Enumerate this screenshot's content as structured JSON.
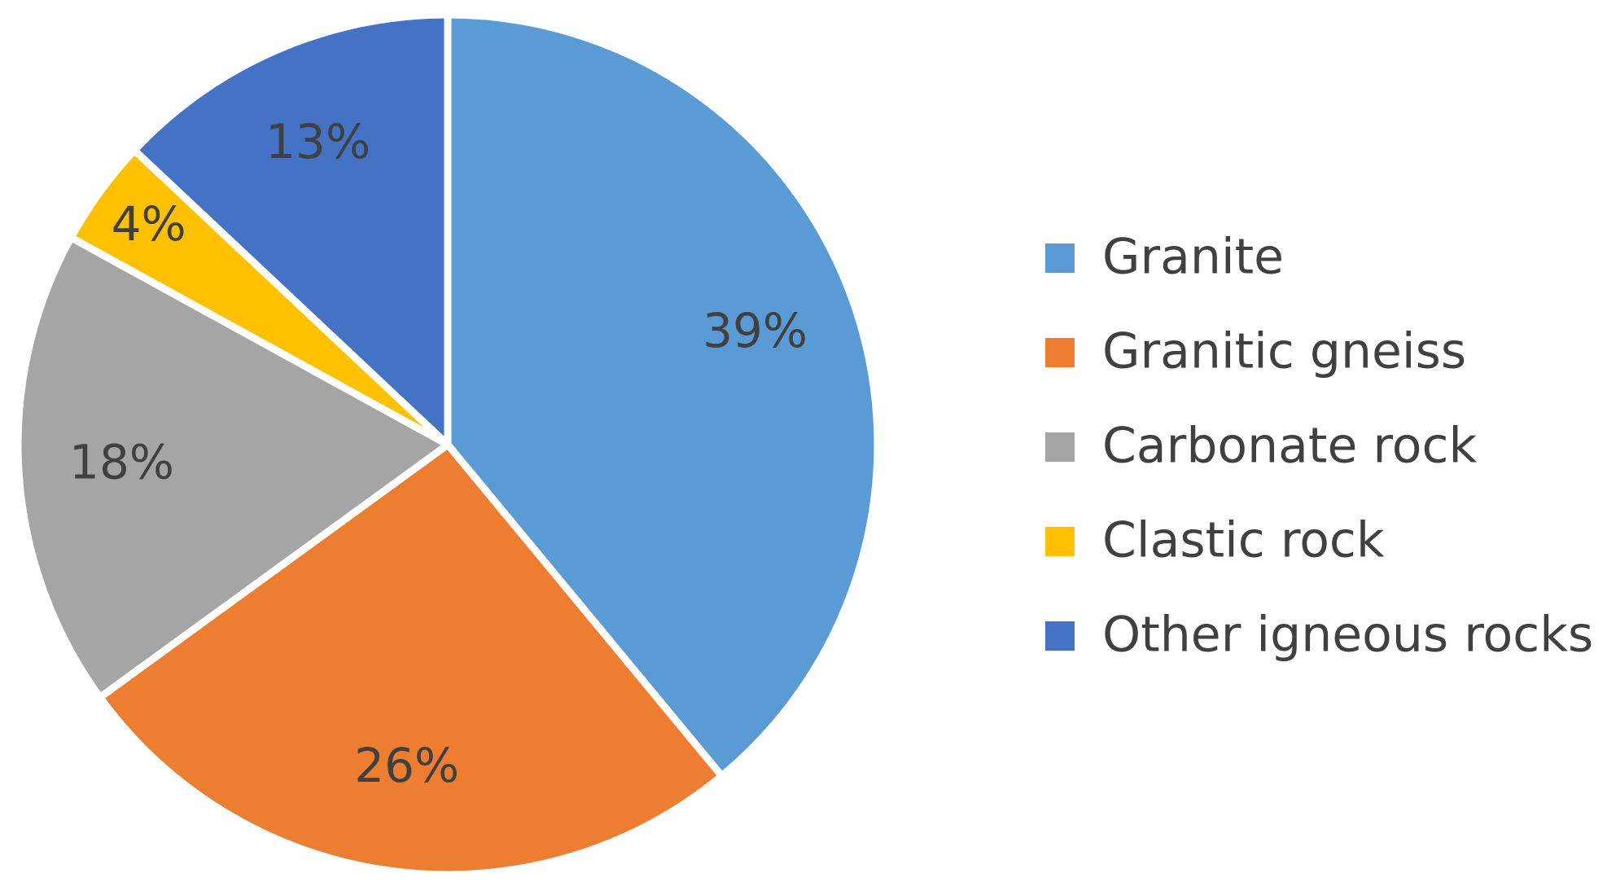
{
  "chart_data": {
    "type": "pie",
    "categories": [
      "Granite",
      "Granitic gneiss",
      "Carbonate rock",
      "Clastic rock",
      "Other igneous rocks"
    ],
    "values": [
      39,
      26,
      18,
      4,
      13
    ],
    "value_labels": [
      "39%",
      "26%",
      "18%",
      "4%",
      "13%"
    ],
    "colors": [
      "#5b9bd5",
      "#ed7d31",
      "#a5a5a5",
      "#ffc000",
      "#4472c4"
    ],
    "legend": "right"
  }
}
